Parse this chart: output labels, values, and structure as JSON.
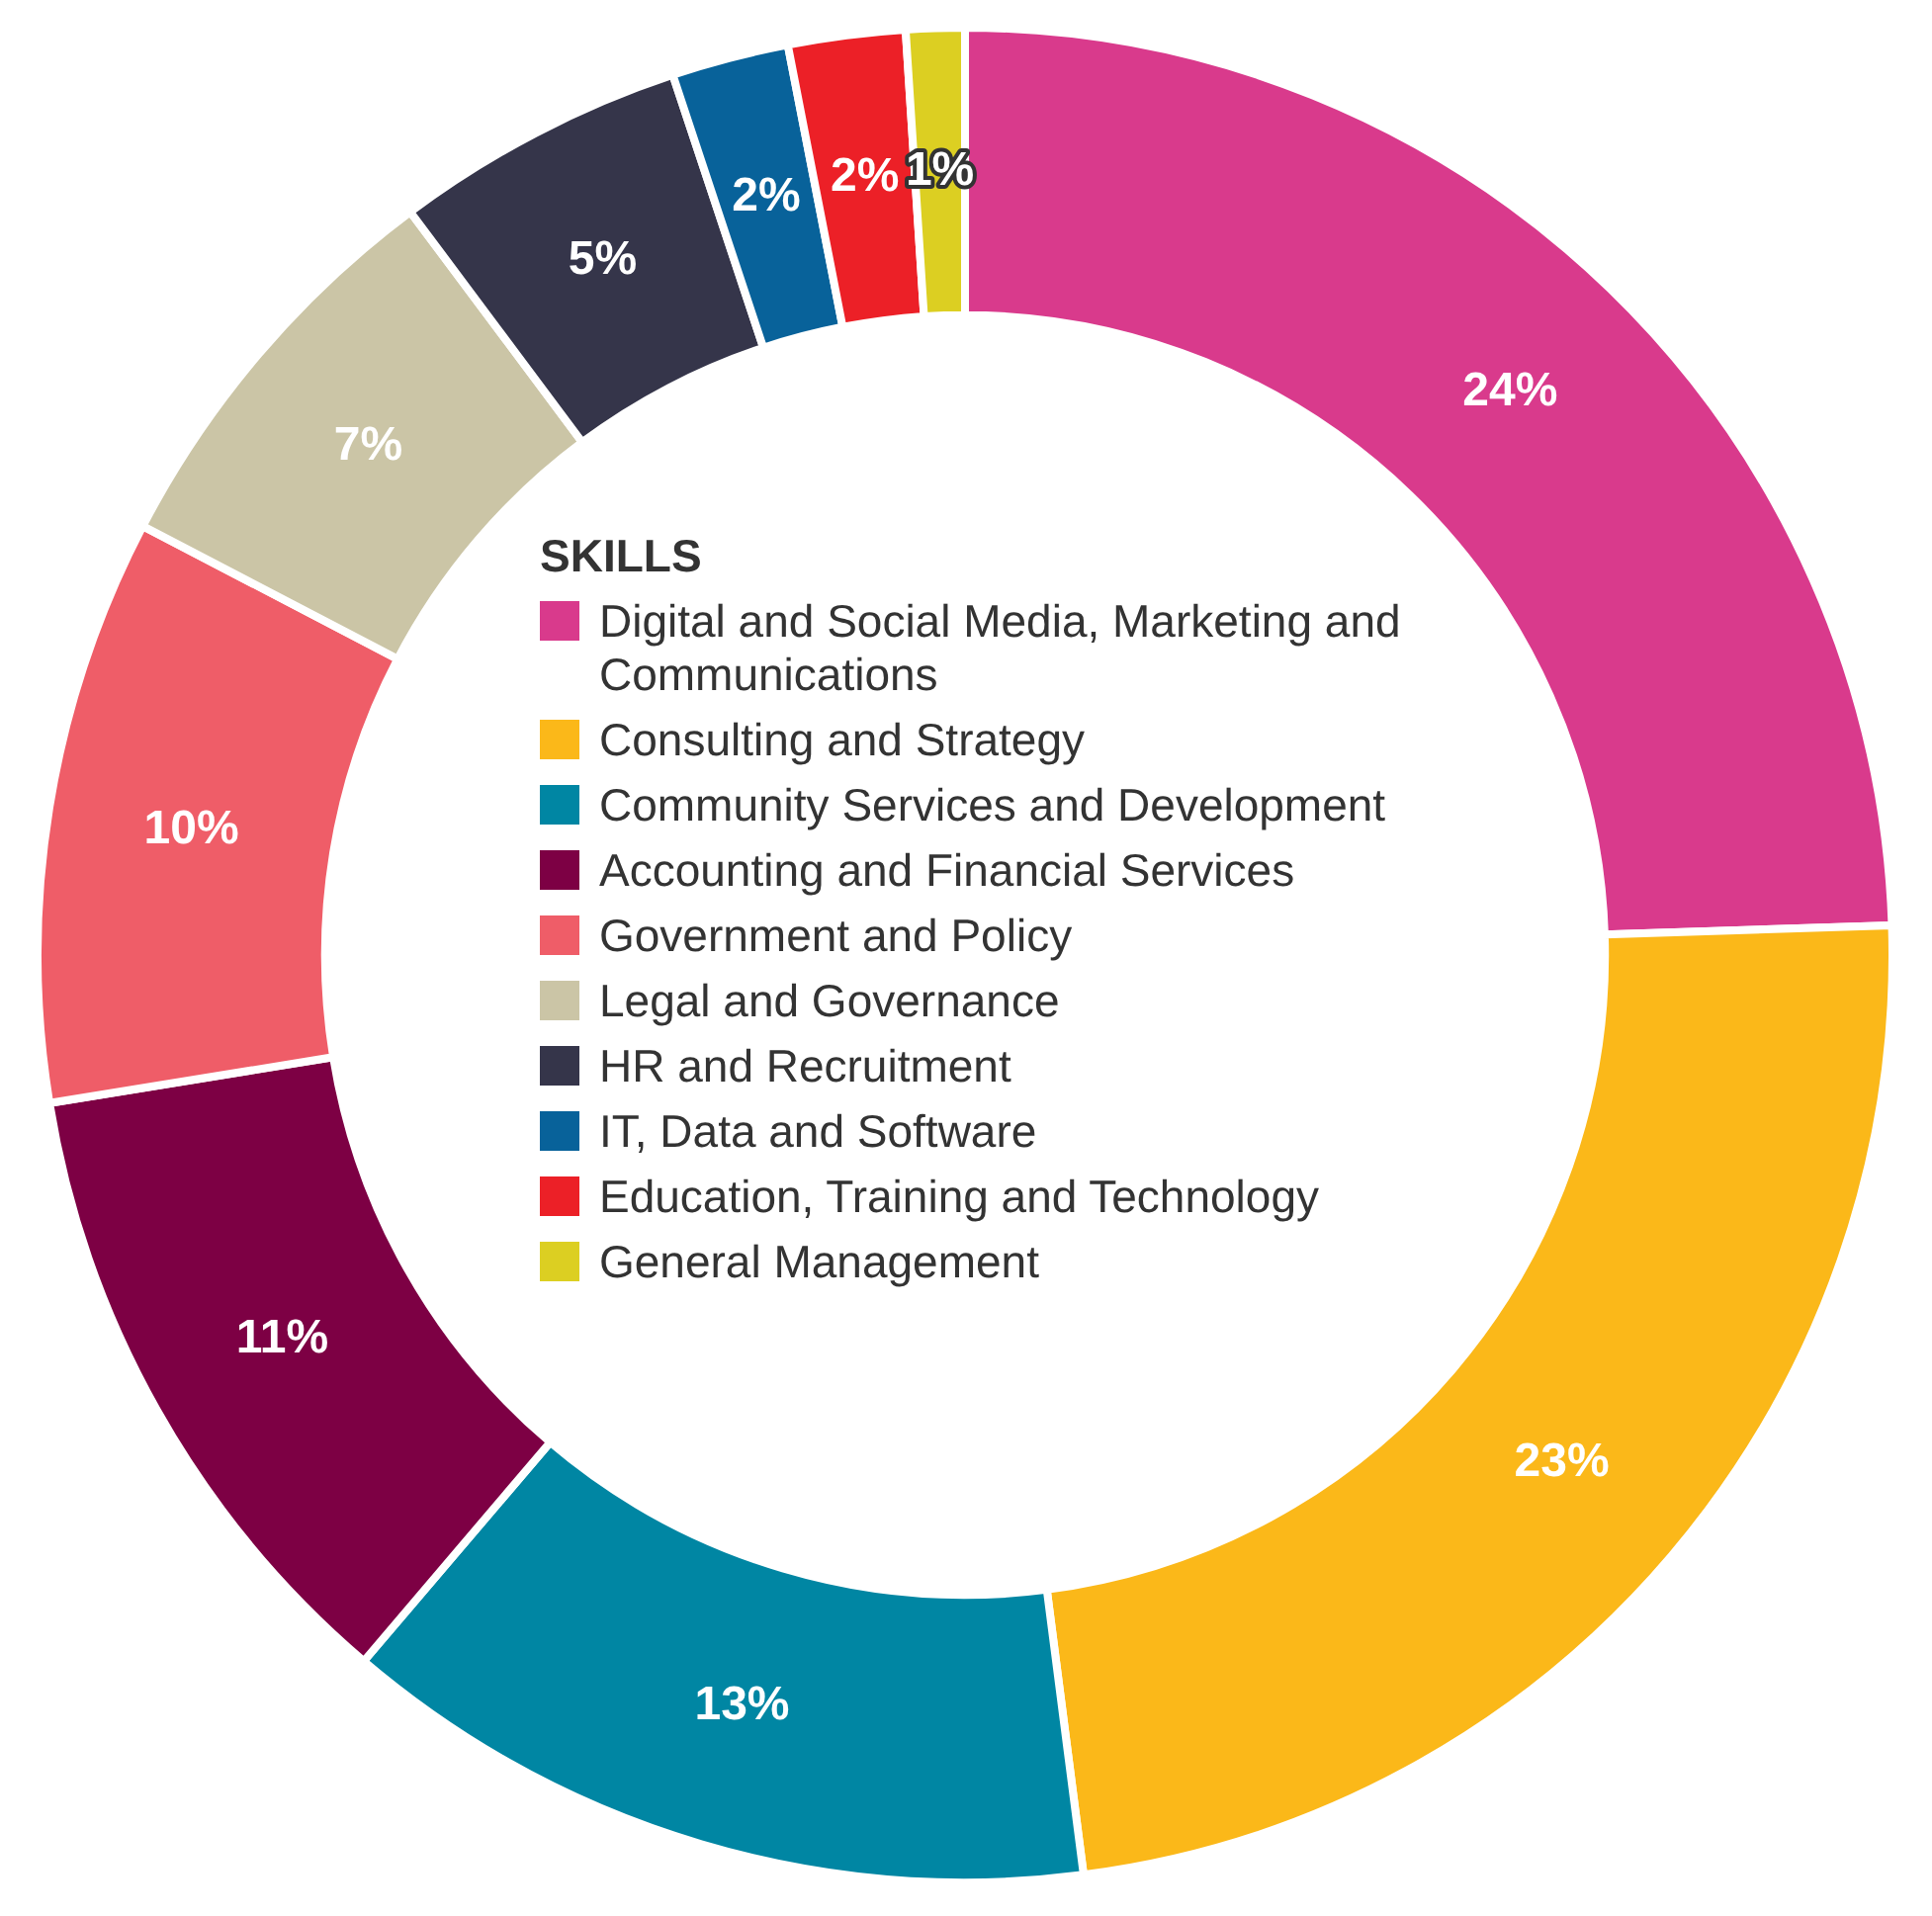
{
  "chart_data": {
    "type": "donut",
    "legend_title": "SKILLS",
    "legend": "center",
    "categories": [
      "Digital and Social Media, Marketing and Communications",
      "Consulting and Strategy",
      "Community Services and Development",
      "Accounting and Financial Services",
      "Government and Policy",
      "Legal and Governance",
      "HR and Recruitment",
      "IT, Data and Software",
      "Education, Training and Technology",
      "General Management"
    ],
    "values": [
      24,
      23,
      13,
      11,
      10,
      7,
      5,
      2,
      2,
      1
    ],
    "colors": [
      "#d93a8c",
      "#fbb819",
      "#0086a3",
      "#7d0044",
      "#ef5d68",
      "#cbc5a6",
      "#35354a",
      "#08629a",
      "#ec2027",
      "#dccf22"
    ],
    "value_labels": [
      "24%",
      "23%",
      "13%",
      "11%",
      "10%",
      "7%",
      "5%",
      "2%",
      "2%",
      "1%"
    ]
  }
}
